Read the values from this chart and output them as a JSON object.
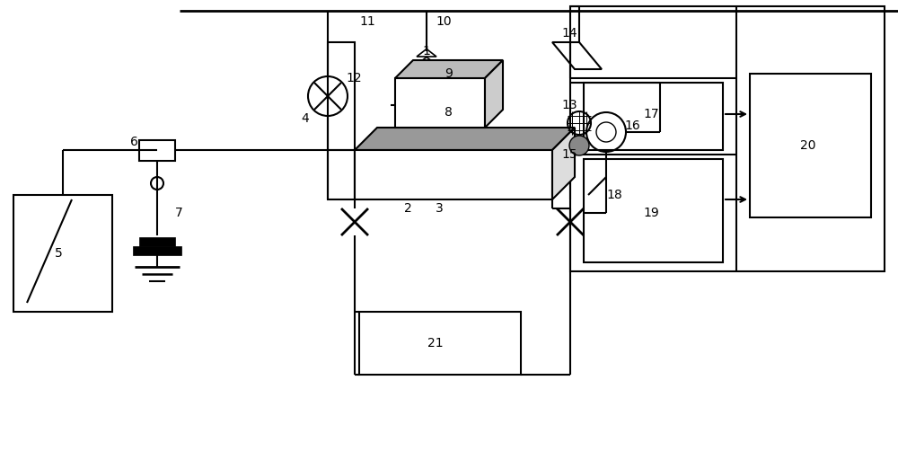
{
  "bg": "#ffffff",
  "lc": "#000000",
  "lw": 1.5,
  "fs": 10,
  "gray_dark": "#888888",
  "gray_plate": "#999999",
  "gray_block": "#bbbbbb"
}
